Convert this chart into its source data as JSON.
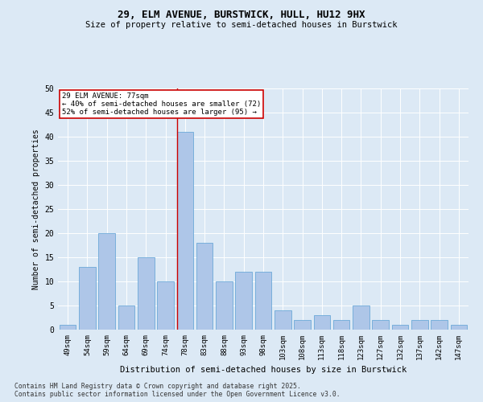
{
  "title1": "29, ELM AVENUE, BURSTWICK, HULL, HU12 9HX",
  "title2": "Size of property relative to semi-detached houses in Burstwick",
  "xlabel": "Distribution of semi-detached houses by size in Burstwick",
  "ylabel": "Number of semi-detached properties",
  "categories": [
    "49sqm",
    "54sqm",
    "59sqm",
    "64sqm",
    "69sqm",
    "74sqm",
    "78sqm",
    "83sqm",
    "88sqm",
    "93sqm",
    "98sqm",
    "103sqm",
    "108sqm",
    "113sqm",
    "118sqm",
    "123sqm",
    "127sqm",
    "132sqm",
    "137sqm",
    "142sqm",
    "147sqm"
  ],
  "values": [
    1,
    13,
    20,
    5,
    15,
    10,
    41,
    18,
    10,
    12,
    12,
    4,
    2,
    3,
    2,
    5,
    2,
    1,
    2,
    2,
    1
  ],
  "bar_color": "#aec6e8",
  "bar_edge_color": "#5a9fd4",
  "highlight_line_index": 6,
  "annotation_line1": "29 ELM AVENUE: 77sqm",
  "annotation_line2": "← 40% of semi-detached houses are smaller (72)",
  "annotation_line3": "52% of semi-detached houses are larger (95) →",
  "annotation_box_color": "#ffffff",
  "annotation_box_edge_color": "#cc0000",
  "vline_color": "#cc0000",
  "background_color": "#dce9f5",
  "footer_line1": "Contains HM Land Registry data © Crown copyright and database right 2025.",
  "footer_line2": "Contains public sector information licensed under the Open Government Licence v3.0.",
  "ylim": [
    0,
    50
  ],
  "yticks": [
    0,
    5,
    10,
    15,
    20,
    25,
    30,
    35,
    40,
    45,
    50
  ]
}
